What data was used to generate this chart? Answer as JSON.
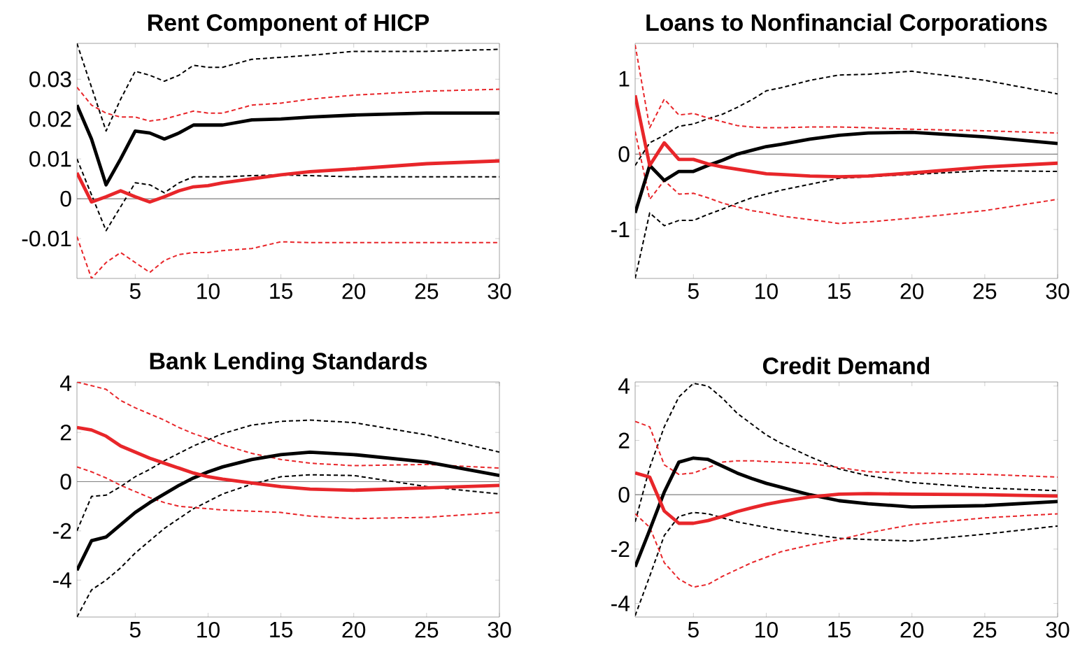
{
  "chart_data": [
    {
      "type": "line",
      "title": "Rent Component of HICP",
      "x": [
        1,
        2,
        3,
        4,
        5,
        6,
        7,
        8,
        9,
        10,
        11,
        13,
        15,
        17,
        20,
        25,
        30
      ],
      "xlim": [
        1,
        30
      ],
      "ylim": [
        -0.02,
        0.039
      ],
      "xticks": [
        5,
        10,
        15,
        20,
        25,
        30
      ],
      "yticks": [
        -0.01,
        0,
        0.01,
        0.02,
        0.03
      ],
      "ref_lines": [
        {
          "axis": "y",
          "value": 0,
          "color": "#808080"
        }
      ],
      "series": [
        {
          "color": "#000000",
          "line_style": "dashed",
          "values": [
            0.039,
            0.028,
            0.017,
            0.025,
            0.032,
            0.031,
            0.0295,
            0.031,
            0.0335,
            0.033,
            0.033,
            0.035,
            0.0355,
            0.036,
            0.037,
            0.037,
            0.0375
          ]
        },
        {
          "color": "#000000",
          "line_style": "dashed",
          "values": [
            0.01,
            0.001,
            -0.008,
            -0.002,
            0.004,
            0.0035,
            0.0015,
            0.004,
            0.0055,
            0.0055,
            0.0055,
            0.0058,
            0.006,
            0.0058,
            0.0055,
            0.0055,
            0.0055
          ]
        },
        {
          "color": "#e8262a",
          "line_style": "dashed",
          "values": [
            0.028,
            0.0235,
            0.0215,
            0.0205,
            0.0205,
            0.0195,
            0.02,
            0.021,
            0.022,
            0.0215,
            0.0215,
            0.0235,
            0.024,
            0.025,
            0.026,
            0.027,
            0.0275
          ]
        },
        {
          "color": "#e8262a",
          "line_style": "dashed",
          "values": [
            -0.0095,
            -0.02,
            -0.016,
            -0.0135,
            -0.016,
            -0.0185,
            -0.0155,
            -0.014,
            -0.0135,
            -0.0135,
            -0.013,
            -0.0125,
            -0.0108,
            -0.011,
            -0.011,
            -0.011,
            -0.011
          ]
        },
        {
          "color": "#000000",
          "line_style": "solid",
          "values": [
            0.0235,
            0.015,
            0.0035,
            0.01,
            0.017,
            0.0165,
            0.015,
            0.0165,
            0.0185,
            0.0185,
            0.0185,
            0.0198,
            0.02,
            0.0205,
            0.021,
            0.0215,
            0.0215
          ]
        },
        {
          "color": "#e8262a",
          "line_style": "solid",
          "values": [
            0.0065,
            -0.0008,
            0.0005,
            0.002,
            0.0005,
            -0.0008,
            0.0005,
            0.002,
            0.003,
            0.0033,
            0.004,
            0.005,
            0.006,
            0.0068,
            0.0075,
            0.0088,
            0.0095
          ]
        }
      ]
    },
    {
      "type": "line",
      "title": "Loans to Nonfinancial Corporations",
      "x": [
        1,
        2,
        3,
        4,
        5,
        6,
        7,
        8,
        9,
        10,
        11,
        13,
        15,
        17,
        20,
        25,
        30
      ],
      "xlim": [
        1,
        30
      ],
      "ylim": [
        -1.65,
        1.47
      ],
      "xticks": [
        5,
        10,
        15,
        20,
        25,
        30
      ],
      "yticks": [
        -1,
        0,
        1
      ],
      "ref_lines": [
        {
          "axis": "y",
          "value": 0,
          "color": "#808080"
        }
      ],
      "series": [
        {
          "color": "#000000",
          "line_style": "dashed",
          "values": [
            -0.15,
            0.15,
            0.25,
            0.37,
            0.4,
            0.47,
            0.53,
            0.62,
            0.72,
            0.84,
            0.88,
            0.98,
            1.05,
            1.06,
            1.1,
            0.98,
            0.8
          ]
        },
        {
          "color": "#000000",
          "line_style": "dashed",
          "values": [
            -1.65,
            -0.78,
            -0.95,
            -0.88,
            -0.88,
            -0.8,
            -0.73,
            -0.65,
            -0.58,
            -0.53,
            -0.48,
            -0.4,
            -0.32,
            null,
            null,
            -0.22,
            -0.23
          ]
        },
        {
          "color": "#e8262a",
          "line_style": "dashed",
          "values": [
            1.45,
            0.35,
            0.73,
            0.52,
            0.54,
            0.48,
            0.43,
            0.38,
            0.36,
            0.35,
            0.35,
            0.36,
            0.36,
            0.35,
            0.33,
            0.31,
            0.28
          ]
        },
        {
          "color": "#e8262a",
          "line_style": "dashed",
          "values": [
            0.3,
            -0.6,
            -0.35,
            -0.53,
            -0.52,
            -0.58,
            -0.65,
            -0.7,
            -0.75,
            -0.78,
            -0.82,
            -0.87,
            -0.92,
            -0.9,
            -0.85,
            -0.75,
            -0.6
          ]
        },
        {
          "color": "#000000",
          "line_style": "solid",
          "values": [
            -0.78,
            -0.15,
            -0.35,
            -0.23,
            -0.23,
            -0.15,
            -0.08,
            0.0,
            0.05,
            0.1,
            0.13,
            0.2,
            0.25,
            0.28,
            0.29,
            0.23,
            0.14
          ]
        },
        {
          "color": "#e8262a",
          "line_style": "solid",
          "values": [
            0.78,
            -0.15,
            0.15,
            -0.07,
            -0.07,
            -0.13,
            -0.17,
            -0.2,
            -0.23,
            -0.26,
            -0.27,
            -0.29,
            -0.3,
            -0.29,
            -0.25,
            -0.17,
            -0.12
          ]
        }
      ]
    },
    {
      "type": "line",
      "title": "Bank Lending Standards",
      "x": [
        1,
        2,
        3,
        4,
        5,
        6,
        7,
        8,
        9,
        10,
        11,
        13,
        15,
        17,
        20,
        25,
        30
      ],
      "xlim": [
        1,
        30
      ],
      "ylim": [
        -5.5,
        4.05
      ],
      "xticks": [
        5,
        10,
        15,
        20,
        25,
        30
      ],
      "yticks": [
        -4,
        -2,
        0,
        2,
        4
      ],
      "ref_lines": [
        {
          "axis": "y",
          "value": 0,
          "color": "#808080"
        }
      ],
      "series": [
        {
          "color": "#000000",
          "line_style": "dashed",
          "values": [
            -2.0,
            -0.6,
            -0.55,
            -0.2,
            0.2,
            0.5,
            0.85,
            1.15,
            1.45,
            1.7,
            1.95,
            2.3,
            2.45,
            2.5,
            2.4,
            1.9,
            1.2
          ]
        },
        {
          "color": "#000000",
          "line_style": "dashed",
          "values": [
            -5.5,
            -4.4,
            -4.0,
            -3.5,
            -2.9,
            -2.4,
            -1.9,
            -1.5,
            -1.1,
            -0.8,
            -0.5,
            -0.1,
            0.2,
            0.28,
            0.25,
            -0.2,
            -0.5
          ]
        },
        {
          "color": "#e8262a",
          "line_style": "dashed",
          "values": [
            4.05,
            3.9,
            3.75,
            3.3,
            3.0,
            2.75,
            2.5,
            2.2,
            1.95,
            1.75,
            1.5,
            1.15,
            0.9,
            0.75,
            0.65,
            0.7,
            0.55
          ]
        },
        {
          "color": "#e8262a",
          "line_style": "dashed",
          "values": [
            0.6,
            0.4,
            0.15,
            -0.15,
            -0.4,
            -0.65,
            -0.85,
            -1.0,
            -1.05,
            -1.1,
            -1.15,
            -1.2,
            -1.25,
            -1.4,
            -1.5,
            -1.45,
            -1.25
          ]
        },
        {
          "color": "#000000",
          "line_style": "solid",
          "values": [
            -3.6,
            -2.4,
            -2.25,
            -1.75,
            -1.25,
            -0.85,
            -0.5,
            -0.15,
            0.15,
            0.4,
            0.6,
            0.9,
            1.1,
            1.2,
            1.1,
            0.8,
            0.25
          ]
        },
        {
          "color": "#e8262a",
          "line_style": "solid",
          "values": [
            2.2,
            2.1,
            1.85,
            1.45,
            1.2,
            0.95,
            0.75,
            0.55,
            0.35,
            0.2,
            0.1,
            -0.05,
            -0.2,
            -0.3,
            -0.35,
            -0.25,
            -0.15
          ]
        }
      ]
    },
    {
      "type": "line",
      "title": "Credit Demand",
      "x": [
        1,
        2,
        3,
        4,
        5,
        6,
        7,
        8,
        9,
        10,
        11,
        13,
        15,
        17,
        20,
        25,
        30
      ],
      "xlim": [
        1,
        30
      ],
      "ylim": [
        -4.5,
        4.15
      ],
      "xticks": [
        5,
        10,
        15,
        20,
        25,
        30
      ],
      "yticks": [
        -4,
        -2,
        0,
        2,
        4
      ],
      "ref_lines": [
        {
          "axis": "y",
          "value": 0,
          "color": "#808080"
        }
      ],
      "series": [
        {
          "color": "#000000",
          "line_style": "dashed",
          "values": [
            -1.0,
            1.0,
            2.5,
            3.6,
            4.1,
            4.0,
            3.55,
            3.0,
            2.6,
            2.2,
            1.9,
            1.4,
            0.95,
            0.7,
            0.45,
            0.25,
            0.15
          ]
        },
        {
          "color": "#000000",
          "line_style": "dashed",
          "values": [
            -4.45,
            -3.0,
            -1.5,
            -0.8,
            -0.65,
            -0.7,
            -0.85,
            -1.0,
            -1.1,
            -1.2,
            -1.3,
            -1.45,
            -1.6,
            -1.65,
            -1.7,
            -1.45,
            -1.15
          ]
        },
        {
          "color": "#e8262a",
          "line_style": "dashed",
          "values": [
            2.7,
            2.5,
            1.1,
            0.75,
            0.8,
            1.0,
            1.2,
            1.25,
            1.25,
            1.22,
            1.2,
            1.15,
            1.0,
            0.85,
            0.8,
            0.75,
            0.65
          ]
        },
        {
          "color": "#e8262a",
          "line_style": "dashed",
          "values": [
            -0.7,
            -1.2,
            -2.5,
            -3.1,
            -3.4,
            -3.3,
            -3.0,
            -2.75,
            -2.5,
            -2.3,
            -2.1,
            -1.85,
            -1.65,
            -1.4,
            -1.1,
            -0.85,
            -0.7
          ]
        },
        {
          "color": "#000000",
          "line_style": "solid",
          "values": [
            -2.65,
            -1.3,
            0.1,
            1.2,
            1.35,
            1.3,
            1.05,
            0.8,
            0.6,
            0.42,
            0.28,
            0.0,
            -0.22,
            -0.33,
            -0.45,
            -0.4,
            -0.25
          ]
        },
        {
          "color": "#e8262a",
          "line_style": "solid",
          "values": [
            0.8,
            0.65,
            -0.6,
            -1.05,
            -1.05,
            -0.95,
            -0.8,
            -0.62,
            -0.48,
            -0.35,
            -0.25,
            -0.08,
            0.02,
            0.04,
            0.02,
            0.0,
            -0.05
          ]
        }
      ]
    }
  ]
}
